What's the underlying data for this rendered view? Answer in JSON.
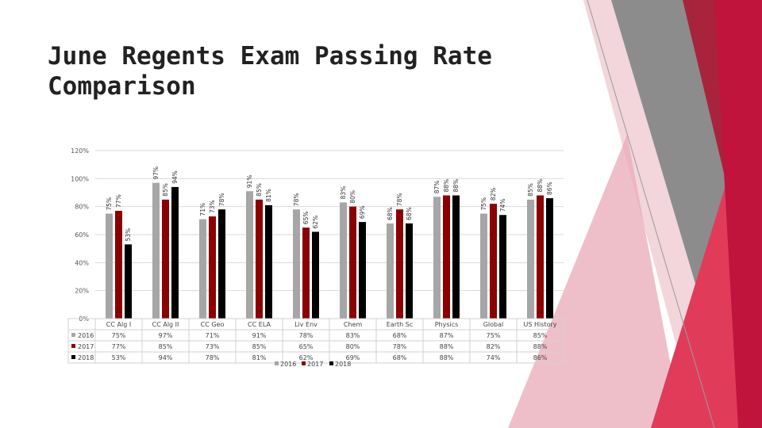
{
  "slide": {
    "title": "June Regents Exam Passing Rate Comparison"
  },
  "colors": {
    "s2016": "#a6a6a6",
    "s2017": "#8b0000",
    "s2018": "#000000",
    "accent_red": "#c0143c",
    "accent_gray": "#8c8c8c"
  },
  "chart_data": {
    "type": "bar",
    "title": "",
    "categories": [
      "CC Alg I",
      "CC Alg II",
      "CC Geo",
      "CC ELA",
      "Liv Env",
      "Chem",
      "Earth Sc",
      "Physics",
      "Global",
      "US History"
    ],
    "series": [
      {
        "name": "2016",
        "values": [
          75,
          97,
          71,
          91,
          78,
          83,
          68,
          87,
          75,
          85
        ]
      },
      {
        "name": "2017",
        "values": [
          77,
          85,
          73,
          85,
          65,
          80,
          78,
          88,
          82,
          88
        ]
      },
      {
        "name": "2018",
        "values": [
          53,
          94,
          78,
          81,
          62,
          69,
          68,
          88,
          74,
          86
        ]
      }
    ],
    "ylim": [
      0,
      120
    ],
    "yticks": [
      0,
      20,
      40,
      60,
      80,
      100,
      120
    ],
    "ytick_labels": [
      "0%",
      "20%",
      "40%",
      "60%",
      "80%",
      "100%",
      "120%"
    ],
    "value_suffix": "%",
    "grid": true,
    "data_table": true,
    "legend": "bottom"
  }
}
